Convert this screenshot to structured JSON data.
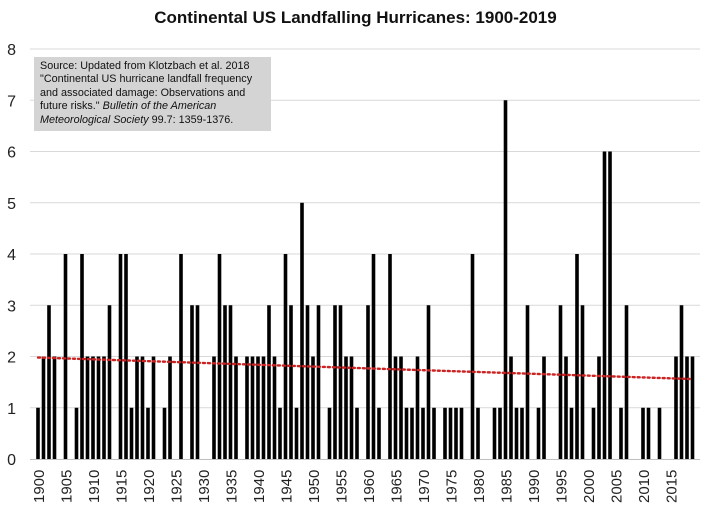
{
  "chart_data": {
    "type": "bar",
    "title": "Continental US Landfalling Hurricanes: 1900-2019",
    "xlabel": "",
    "ylabel": "",
    "ylim": [
      0,
      8
    ],
    "yticks": [
      "0",
      "1",
      "2",
      "3",
      "4",
      "5",
      "6",
      "7",
      "8"
    ],
    "xticks": [
      "1900",
      "1905",
      "1910",
      "1915",
      "1920",
      "1925",
      "1930",
      "1935",
      "1940",
      "1945",
      "1950",
      "1955",
      "1960",
      "1965",
      "1970",
      "1975",
      "1980",
      "1985",
      "1990",
      "1995",
      "2000",
      "2005",
      "2010",
      "2015"
    ],
    "x_start": 1900,
    "years": [
      1900,
      1901,
      1902,
      1903,
      1904,
      1905,
      1906,
      1907,
      1908,
      1909,
      1910,
      1911,
      1912,
      1913,
      1914,
      1915,
      1916,
      1917,
      1918,
      1919,
      1920,
      1921,
      1922,
      1923,
      1924,
      1925,
      1926,
      1927,
      1928,
      1929,
      1930,
      1931,
      1932,
      1933,
      1934,
      1935,
      1936,
      1937,
      1938,
      1939,
      1940,
      1941,
      1942,
      1943,
      1944,
      1945,
      1946,
      1947,
      1948,
      1949,
      1950,
      1951,
      1952,
      1953,
      1954,
      1955,
      1956,
      1957,
      1958,
      1959,
      1960,
      1961,
      1962,
      1963,
      1964,
      1965,
      1966,
      1967,
      1968,
      1969,
      1970,
      1971,
      1972,
      1973,
      1974,
      1975,
      1976,
      1977,
      1978,
      1979,
      1980,
      1981,
      1982,
      1983,
      1984,
      1985,
      1986,
      1987,
      1988,
      1989,
      1990,
      1991,
      1992,
      1993,
      1994,
      1995,
      1996,
      1997,
      1998,
      1999,
      2000,
      2001,
      2002,
      2003,
      2004,
      2005,
      2006,
      2007,
      2008,
      2009,
      2010,
      2011,
      2012,
      2013,
      2014,
      2015,
      2016,
      2017,
      2018,
      2019
    ],
    "values": [
      1,
      2,
      3,
      2,
      0,
      4,
      0,
      1,
      4,
      2,
      2,
      2,
      2,
      3,
      0,
      4,
      4,
      1,
      2,
      2,
      1,
      2,
      0,
      1,
      2,
      0,
      4,
      0,
      3,
      3,
      0,
      0,
      2,
      4,
      3,
      3,
      2,
      0,
      2,
      2,
      2,
      2,
      3,
      2,
      1,
      4,
      3,
      1,
      5,
      3,
      2,
      3,
      0,
      1,
      3,
      3,
      2,
      2,
      1,
      0,
      3,
      4,
      1,
      0,
      4,
      2,
      2,
      1,
      1,
      2,
      1,
      3,
      1,
      0,
      1,
      1,
      1,
      1,
      0,
      4,
      1,
      0,
      0,
      1,
      1,
      7,
      2,
      1,
      1,
      3,
      0,
      1,
      2,
      0,
      0,
      3,
      2,
      1,
      4,
      3,
      0,
      1,
      2,
      6,
      6,
      0,
      1,
      3,
      0,
      0,
      1,
      1,
      0,
      1,
      0,
      0,
      2,
      3,
      2,
      2
    ],
    "trendline": {
      "start": 1.98,
      "end": 1.56,
      "color": "#cc2222",
      "style": "dotted"
    },
    "bar_color": "#000000",
    "gridlines": true
  },
  "source": {
    "lines": [
      {
        "text": "Source: Updated from Klotzbach et al. 2018",
        "italic": "",
        "tail": ""
      },
      {
        "text": "\"Continental US hurricane landfall frequency",
        "italic": "",
        "tail": ""
      },
      {
        "text": "and associated damage: Observations and",
        "italic": "",
        "tail": ""
      },
      {
        "text": "future risks.\" ",
        "italic": "Bulletin of the American",
        "tail": ""
      },
      {
        "text": "",
        "italic": "Meteorological Society",
        "tail": " 99.7: 1359-1376."
      }
    ]
  }
}
